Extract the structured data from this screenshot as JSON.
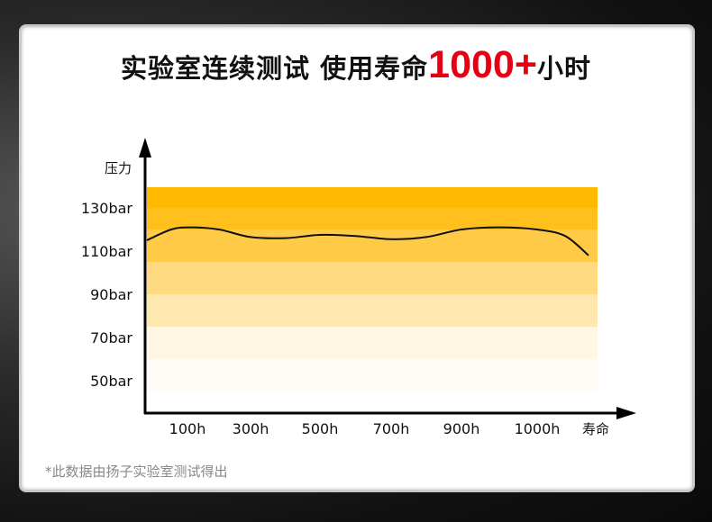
{
  "title": {
    "prefix": "实验室连续测试 使用寿命",
    "highlight": "1000+",
    "suffix": "小时",
    "highlight_color": "#e60012"
  },
  "footnote": "*此数据由扬子实验室测试得出",
  "chart_data": {
    "type": "line",
    "ylabel": "压力",
    "xlabel": "寿命",
    "y_ticks": [
      {
        "value": 130,
        "label": "130bar"
      },
      {
        "value": 110,
        "label": "110bar"
      },
      {
        "value": 90,
        "label": "90bar"
      },
      {
        "value": 70,
        "label": "70bar"
      },
      {
        "value": 50,
        "label": "50bar"
      }
    ],
    "x_ticks": [
      {
        "value": 100,
        "label": "100h"
      },
      {
        "value": 300,
        "label": "300h"
      },
      {
        "value": 500,
        "label": "500h"
      },
      {
        "value": 700,
        "label": "700h"
      },
      {
        "value": 900,
        "label": "900h"
      },
      {
        "value": 1000,
        "label": "1000h"
      }
    ],
    "ylim": [
      30,
      145
    ],
    "grid": false,
    "bands": [
      {
        "from": 130,
        "to": 145,
        "color": "#FFB900"
      },
      {
        "from": 120,
        "to": 130,
        "color": "#FFBF1C"
      },
      {
        "from": 105,
        "to": 120,
        "color": "#FFCA45"
      },
      {
        "from": 90,
        "to": 105,
        "color": "#FFDA80"
      },
      {
        "from": 75,
        "to": 90,
        "color": "#FFE8AF"
      },
      {
        "from": 60,
        "to": 75,
        "color": "#FFF6E3"
      },
      {
        "from": 45,
        "to": 60,
        "color": "#FFFCF8"
      }
    ],
    "series": [
      {
        "x": [
          0,
          60,
          110,
          200,
          300,
          400,
          500,
          600,
          700,
          800,
          900,
          950,
          1000,
          1060,
          1110
        ],
        "y": [
          115,
          120,
          121,
          120,
          116.5,
          116,
          117.5,
          117,
          115.5,
          116.5,
          120,
          121,
          120,
          117,
          108
        ]
      }
    ]
  }
}
